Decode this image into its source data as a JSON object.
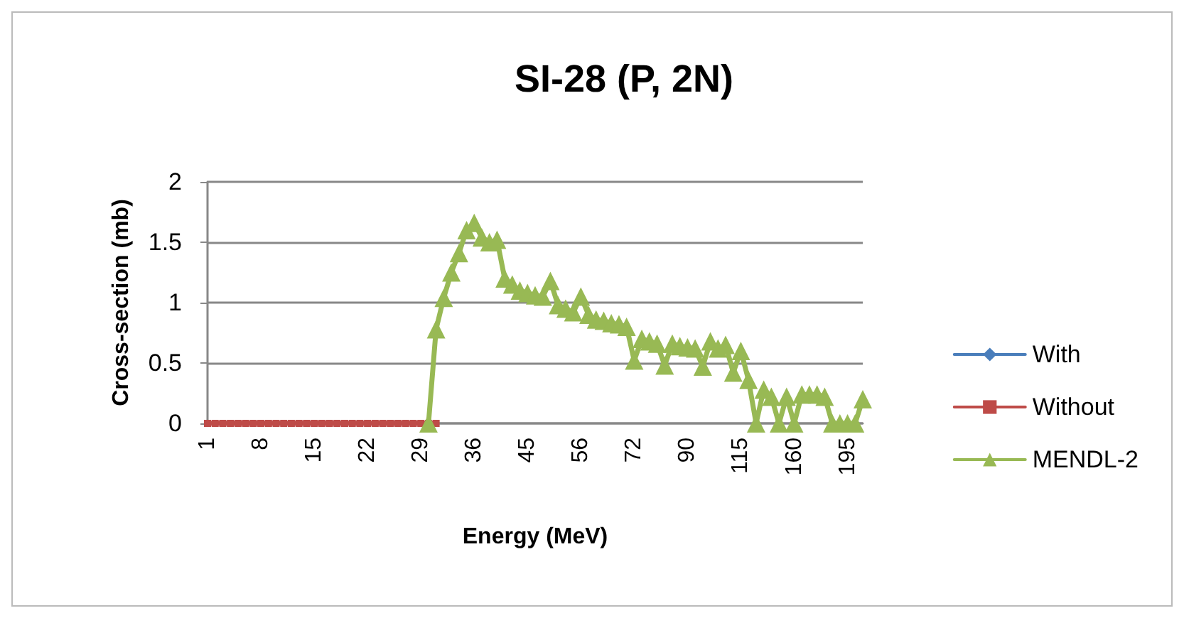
{
  "chart_data": {
    "type": "line",
    "title": "SI-28 (P, 2N)",
    "xlabel": "Energy (MeV)",
    "ylabel": "Cross-section (mb)",
    "categories": [
      "1",
      null,
      null,
      null,
      null,
      null,
      null,
      "8",
      null,
      null,
      null,
      null,
      null,
      null,
      "15",
      null,
      null,
      null,
      null,
      null,
      null,
      "22",
      null,
      null,
      null,
      null,
      null,
      null,
      "29",
      null,
      null,
      null,
      null,
      null,
      null,
      "36",
      null,
      null,
      null,
      null,
      null,
      null,
      "45",
      null,
      null,
      null,
      null,
      null,
      null,
      "56",
      null,
      null,
      null,
      null,
      null,
      null,
      "72",
      null,
      null,
      null,
      null,
      null,
      null,
      "90",
      null,
      null,
      null,
      null,
      null,
      null,
      "115",
      null,
      null,
      null,
      null,
      null,
      null,
      "160",
      null,
      null,
      null,
      null,
      null,
      null,
      "195",
      null,
      null
    ],
    "series": [
      {
        "name": "With",
        "color": "#4a7ebb",
        "marker": "diamond",
        "values": [
          null,
          null,
          null,
          null,
          null,
          null,
          null,
          null,
          null,
          null,
          null,
          null,
          null,
          null,
          null,
          null,
          null,
          null,
          null,
          null,
          null,
          null,
          null,
          null,
          null,
          null,
          null,
          null,
          null,
          null,
          null,
          null,
          null,
          null,
          null,
          null,
          null,
          null,
          null,
          null,
          null,
          null,
          null,
          null,
          null,
          null,
          null,
          null,
          null,
          null,
          null,
          null,
          null,
          null,
          null,
          null,
          null,
          null,
          null,
          null,
          null,
          null,
          null,
          null,
          null,
          null,
          null,
          null,
          null,
          null,
          null,
          null,
          null,
          null,
          null,
          null,
          null,
          null,
          null,
          null,
          null,
          null,
          null,
          null,
          null,
          null,
          null
        ]
      },
      {
        "name": "Without",
        "color": "#be4b48",
        "marker": "square",
        "values": [
          0,
          0,
          0,
          0,
          0,
          0,
          0,
          0,
          0,
          0,
          0,
          0,
          0,
          0,
          0,
          0,
          0,
          0,
          0,
          0,
          0,
          0,
          0,
          0,
          0,
          0,
          0,
          0,
          0,
          0,
          0,
          null,
          null,
          null,
          null,
          null,
          null,
          null,
          null,
          null,
          null,
          null,
          null,
          null,
          null,
          null,
          null,
          null,
          null,
          null,
          null,
          null,
          null,
          null,
          null,
          null,
          null,
          null,
          null,
          null,
          null,
          null,
          null,
          null,
          null,
          null,
          null,
          null,
          null,
          null,
          null,
          null,
          null,
          null,
          null,
          null,
          null,
          null,
          null,
          null,
          null,
          null,
          null,
          null,
          null,
          null,
          null
        ]
      },
      {
        "name": "MENDL-2",
        "color": "#98b954",
        "marker": "triangle",
        "values": [
          null,
          null,
          null,
          null,
          null,
          null,
          null,
          null,
          null,
          null,
          null,
          null,
          null,
          null,
          null,
          null,
          null,
          null,
          null,
          null,
          null,
          null,
          null,
          null,
          null,
          null,
          null,
          null,
          null,
          0,
          0.78,
          1.04,
          1.25,
          1.41,
          1.6,
          1.66,
          1.54,
          1.5,
          1.52,
          1.2,
          1.15,
          1.1,
          1.08,
          1.06,
          1.05,
          1.18,
          0.98,
          0.95,
          0.92,
          1.05,
          0.9,
          0.86,
          0.85,
          0.83,
          0.82,
          0.8,
          0.52,
          0.7,
          0.68,
          0.66,
          0.48,
          0.66,
          0.64,
          0.63,
          0.62,
          0.47,
          0.68,
          0.62,
          0.65,
          0.42,
          0.6,
          0.36,
          0,
          0.28,
          0.22,
          0,
          0.22,
          0,
          0.24,
          0.24,
          0.24,
          0.22,
          0,
          0,
          0,
          0,
          0.2
        ]
      }
    ],
    "ylim": [
      0,
      2
    ],
    "yticks": [
      0,
      0.5,
      1,
      1.5,
      2
    ],
    "grid": "y",
    "legend": "right",
    "line_style": "solid"
  }
}
